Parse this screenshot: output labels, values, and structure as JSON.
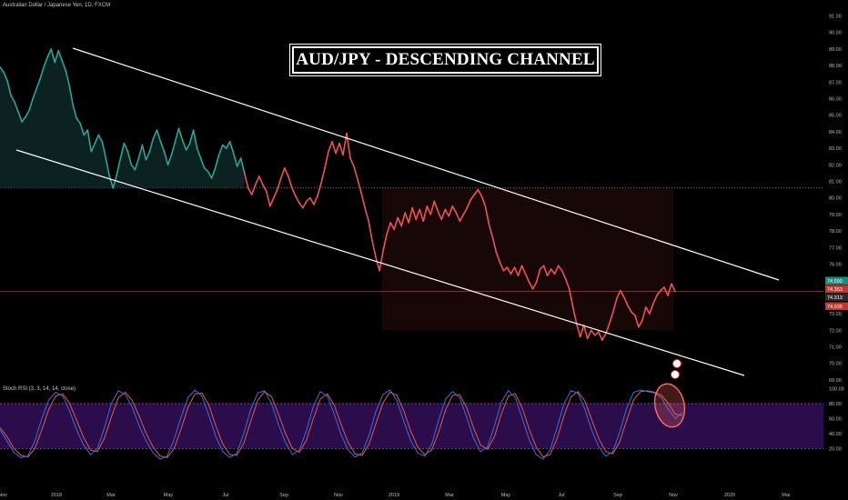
{
  "header": {
    "symbol_text": "Australian Dollar / Japanese Yen, 1D, FXCM"
  },
  "title": "AUD/JPY -  DESCENDING CHANNEL",
  "stoch_label": "Stoch RSI (3, 3, 14, 14, close)",
  "colors": {
    "background": "#000000",
    "up_line": "#26a69a",
    "down_line": "#ef5350",
    "channel": "#ffffff",
    "stoch_k": "#3c6fd8",
    "stoch_d": "#e05a4e",
    "stoch_band": "#2a0d4a",
    "highlight": "#ff6b5e"
  },
  "chart_data": [
    {
      "type": "line",
      "title": "Australian Dollar / Japanese Yen, 1D, FXCM",
      "x_ticks": [
        "Nov",
        "2018",
        "Mar",
        "May",
        "Jul",
        "Sep",
        "Nov",
        "2019",
        "Mar",
        "May",
        "Jul",
        "Sep",
        "Nov",
        "2020",
        "Mar"
      ],
      "y_ticks": [
        69.0,
        70.0,
        71.0,
        72.0,
        73.0,
        74.0,
        75.0,
        76.0,
        77.0,
        78.0,
        79.0,
        80.0,
        81.0,
        82.0,
        83.0,
        84.0,
        85.0,
        86.0,
        87.0,
        88.0,
        89.0,
        90.0,
        91.0
      ],
      "ylim": [
        68.5,
        91.5
      ],
      "price_labels": [
        "74.590",
        "74.353",
        "74.313",
        "74.036"
      ],
      "reference_level": 80.6,
      "series": [
        {
          "values": [
            87.9,
            87.6,
            87.1,
            86.2,
            85.8,
            85.2,
            84.6,
            84.9,
            85.3,
            86.0,
            86.6,
            87.2,
            87.9,
            88.5,
            89.0,
            88.2,
            88.9,
            88.3,
            87.7,
            86.8,
            85.6,
            84.8,
            84.5,
            83.8,
            84.1,
            82.8,
            83.3,
            83.8,
            83.4,
            82.4,
            81.3,
            80.6,
            81.4,
            82.4,
            83.3,
            82.8,
            82.0,
            81.7,
            82.4,
            83.2,
            82.3,
            82.8,
            83.6,
            84.1,
            83.4,
            82.8,
            82.0,
            82.6,
            83.4,
            84.2,
            83.5,
            82.9,
            83.3,
            84.1,
            83.0,
            82.4,
            81.8,
            81.6,
            81.2,
            81.8,
            82.6,
            83.2,
            83.0,
            83.4,
            82.7,
            81.9,
            82.4,
            81.5,
            80.6,
            80.2,
            80.8,
            81.3,
            80.8,
            80.4,
            79.5,
            80.0,
            80.5,
            81.2,
            81.8,
            81.3,
            80.6,
            80.1,
            79.7,
            79.4,
            79.8,
            80.0,
            79.6,
            80.1,
            80.9,
            81.8,
            82.8,
            83.4,
            82.7,
            83.3,
            82.6,
            83.9,
            82.4,
            81.9,
            81.1,
            80.3,
            79.4,
            78.6,
            77.4,
            76.4,
            75.6,
            76.8,
            77.8,
            78.5,
            78.1,
            78.8,
            78.3,
            79.1,
            78.5,
            79.4,
            78.7,
            79.3,
            78.6,
            79.5,
            79.0,
            79.8,
            79.2,
            78.7,
            79.3,
            78.9,
            79.5,
            79.1,
            78.6,
            79.0,
            79.4,
            79.9,
            80.2,
            80.5,
            80.1,
            79.5,
            78.4,
            77.6,
            76.7,
            76.1,
            75.6,
            75.8,
            75.4,
            75.8,
            75.3,
            75.9,
            75.4,
            74.9,
            74.5,
            74.9,
            75.7,
            75.9,
            75.3,
            75.7,
            75.4,
            75.9,
            75.6,
            75.1,
            74.5,
            73.4,
            72.4,
            71.6,
            72.3,
            71.5,
            72.0,
            71.7,
            71.9,
            71.4,
            71.8,
            72.4,
            73.1,
            73.9,
            74.4,
            74.0,
            73.5,
            73.1,
            72.9,
            72.2,
            72.6,
            73.4,
            73.0,
            73.6,
            74.1,
            74.4,
            74.6,
            74.1,
            74.8,
            74.35
          ]
        }
      ],
      "channel_lines": [
        {
          "name": "upper",
          "from": {
            "x": "Jan 2018",
            "y": 89.2
          },
          "to": {
            "x": "Feb 2020",
            "y": 75.2
          }
        },
        {
          "name": "lower",
          "from": {
            "x": "Nov 2017",
            "y": 82.7
          },
          "to": {
            "x": "Jan 2020",
            "y": 69.3
          }
        }
      ]
    },
    {
      "type": "line",
      "title": "Stoch RSI (3, 3, 14, 14, close)",
      "y_ticks": [
        20.0,
        40.0,
        60.0,
        80.0,
        100.0
      ],
      "ylim": [
        0,
        100
      ],
      "band": [
        20,
        80
      ],
      "series": [
        {
          "values": [
            45,
            30,
            15,
            8,
            10,
            30,
            60,
            85,
            95,
            90,
            70,
            45,
            25,
            12,
            20,
            48,
            80,
            97,
            92,
            75,
            50,
            30,
            14,
            6,
            10,
            32,
            62,
            88,
            98,
            90,
            64,
            36,
            16,
            8,
            14,
            40,
            72,
            94,
            97,
            80,
            52,
            28,
            12,
            18,
            44,
            76,
            96,
            90,
            66,
            38,
            18,
            9,
            14,
            38,
            70,
            92,
            98,
            84,
            56,
            30,
            14,
            10,
            26,
            58,
            86,
            96,
            88,
            62,
            34,
            16,
            22,
            50,
            82,
            97,
            88,
            60,
            32,
            12,
            6,
            18,
            48,
            80,
            97,
            94,
            72,
            44,
            22,
            10,
            16,
            42,
            74,
            95,
            98,
            96,
            94,
            88,
            72,
            60,
            68
          ]
        },
        {
          "values": [
            48,
            36,
            20,
            11,
            9,
            20,
            45,
            72,
            90,
            93,
            80,
            58,
            35,
            18,
            16,
            34,
            62,
            88,
            95,
            84,
            63,
            40,
            22,
            10,
            8,
            20,
            46,
            75,
            93,
            94,
            78,
            50,
            26,
            12,
            11,
            27,
            56,
            84,
            96,
            89,
            66,
            40,
            20,
            15,
            31,
            60,
            86,
            93,
            78,
            52,
            28,
            13,
            11,
            26,
            54,
            81,
            95,
            91,
            70,
            43,
            22,
            12,
            18,
            42,
            72,
            91,
            92,
            75,
            48,
            25,
            19,
            36,
            66,
            90,
            93,
            74,
            46,
            22,
            9,
            12,
            33,
            64,
            89,
            96,
            83,
            58,
            33,
            16,
            13,
            29,
            58,
            85,
            96,
            97,
            95,
            91,
            80,
            66,
            64
          ]
        }
      ]
    }
  ]
}
